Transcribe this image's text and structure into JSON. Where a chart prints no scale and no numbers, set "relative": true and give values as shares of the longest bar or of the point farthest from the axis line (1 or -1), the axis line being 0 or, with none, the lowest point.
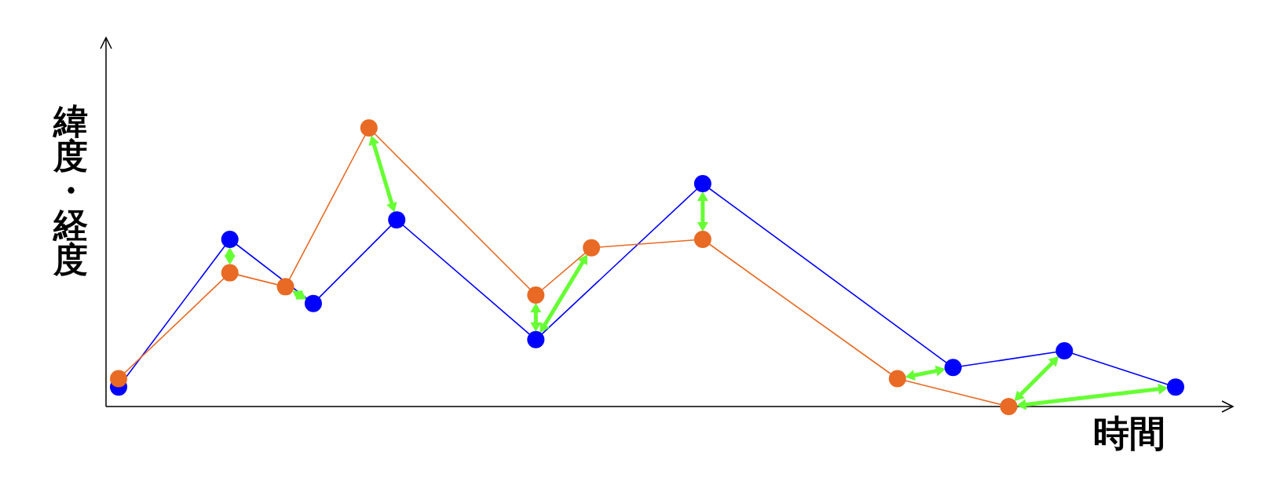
{
  "chart_data": {
    "type": "line",
    "relative": true,
    "xlabel": "時間",
    "ylabel": "緯度・経度",
    "marker": "circle",
    "categories": [
      null,
      null,
      null,
      null,
      null,
      null,
      null,
      null,
      null,
      null,
      null,
      null,
      null,
      null,
      null,
      null,
      null,
      null,
      null,
      null,
      null,
      null,
      null,
      null,
      null,
      null,
      null,
      null,
      null,
      null,
      null,
      null,
      null,
      null,
      null,
      null,
      null,
      null,
      null
    ],
    "series": [
      {
        "color": "#0000ff",
        "values": [
          0.07,
          null,
          null,
          null,
          0.6,
          null,
          null,
          0.37,
          null,
          null,
          0.67,
          null,
          null,
          null,
          null,
          0.24,
          null,
          null,
          null,
          null,
          null,
          0.8,
          null,
          null,
          null,
          null,
          null,
          null,
          null,
          null,
          0.14,
          null,
          null,
          null,
          0.2,
          null,
          null,
          null,
          0.07
        ]
      },
      {
        "color": "#e86a24",
        "values": [
          0.1,
          null,
          null,
          null,
          0.48,
          null,
          0.43,
          null,
          null,
          1.0,
          null,
          null,
          null,
          null,
          null,
          0.4,
          null,
          0.57,
          null,
          null,
          null,
          0.6,
          null,
          null,
          null,
          null,
          null,
          null,
          0.1,
          null,
          null,
          null,
          0.0,
          null,
          null,
          null,
          null,
          null,
          null
        ]
      }
    ]
  }
}
